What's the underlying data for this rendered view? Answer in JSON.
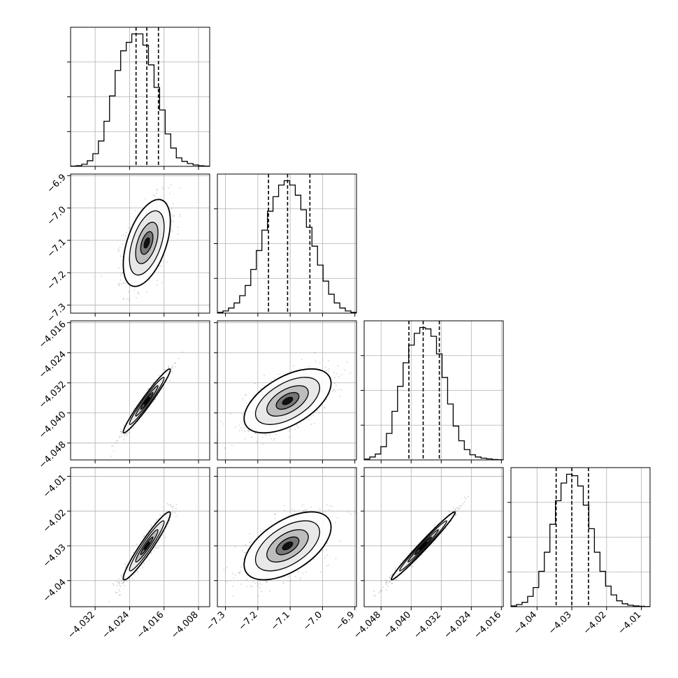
{
  "chart_data": {
    "type": "corner",
    "title": "",
    "n_params": 4,
    "param_labels": [
      "",
      "",
      "",
      ""
    ],
    "axis_ranges": [
      [
        -4.0377,
        -4.0054
      ],
      [
        -7.325,
        -6.895
      ],
      [
        -4.0525,
        -4.0155
      ],
      [
        -4.0475,
        -4.0075
      ]
    ],
    "x_tick_values": [
      [
        -4.032,
        -4.024,
        -4.016,
        -4.008
      ],
      [
        -7.3,
        -7.2,
        -7.1,
        -7.0,
        -6.9
      ],
      [
        -4.048,
        -4.04,
        -4.032,
        -4.024,
        -4.016
      ],
      [
        -4.04,
        -4.03,
        -4.02,
        -4.01
      ]
    ],
    "x_tick_labels": [
      [
        "−4.032",
        "−4.024",
        "−4.016",
        "−4.008"
      ],
      [
        "−7.3",
        "−7.2",
        "−7.1",
        "−7.0",
        "−6.9"
      ],
      [
        "−4.048",
        "−4.040",
        "−4.032",
        "−4.024",
        "−4.016"
      ],
      [
        "−4.04",
        "−4.03",
        "−4.02",
        "−4.01"
      ]
    ],
    "y_tick_labels": [
      [],
      [
        "−6.9",
        "−7.0",
        "−7.1",
        "−7.2",
        "−7.3"
      ],
      [
        "−4.016",
        "−4.024",
        "−4.032",
        "−4.040",
        "−4.048"
      ],
      [
        "−4.01",
        "−4.02",
        "−4.03",
        "−4.04"
      ]
    ],
    "y_tick_values": [
      [],
      [
        -6.9,
        -7.0,
        -7.1,
        -7.2,
        -7.3
      ],
      [
        -4.016,
        -4.024,
        -4.032,
        -4.04,
        -4.048
      ],
      [
        -4.01,
        -4.02,
        -4.03,
        -4.04
      ]
    ],
    "quantiles": [
      [
        -4.0225,
        -4.02,
        -4.0173
      ],
      [
        -7.167,
        -7.108,
        -7.039
      ],
      [
        -4.0406,
        -4.0368,
        -4.0325
      ],
      [
        -4.0345,
        -4.03,
        -4.0252
      ]
    ],
    "histograms": [
      [
        0.2,
        0.5,
        1.5,
        4,
        9,
        18,
        32,
        50,
        68,
        82,
        88,
        94,
        94,
        86,
        72,
        56,
        40,
        23,
        13,
        6,
        3.5,
        2,
        1,
        0.4,
        0.2
      ],
      [
        0.5,
        1.5,
        3.5,
        7,
        12,
        19,
        30,
        43,
        57,
        70,
        80,
        88,
        91,
        88,
        81,
        71,
        59,
        46,
        33,
        22,
        13,
        7,
        3.5,
        1.5,
        0.5
      ],
      [
        0.6,
        2,
        4,
        9,
        18,
        33,
        50,
        66,
        78,
        86,
        90,
        89,
        84,
        72,
        56,
        38,
        23,
        13,
        7,
        3.5,
        2,
        1.2,
        0.7,
        0.3,
        0.1
      ],
      [
        0.5,
        1.5,
        3,
        7,
        13,
        24,
        37,
        56,
        72,
        84,
        90,
        89,
        82,
        69,
        53,
        37,
        24,
        14,
        8,
        4,
        2,
        1,
        0.5,
        0.3,
        0.1
      ]
    ],
    "correlations": {
      "1,0": 0.5,
      "2,0": 0.97,
      "2,1": 0.55,
      "3,0": 0.95,
      "3,1": 0.55,
      "3,2": 0.985
    },
    "grid": true,
    "hist_style": "step",
    "quantile_line_style": "dashed",
    "scatter_color": "#000000",
    "contour_color": "#000000"
  }
}
